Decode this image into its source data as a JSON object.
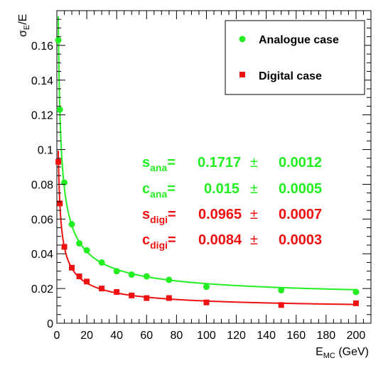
{
  "chart_data": {
    "type": "scatter",
    "xlabel": {
      "main": "E",
      "sub": "MC",
      "suffix": " (GeV)"
    },
    "ylabel": {
      "main": "σ",
      "sub": "E",
      "suffix": "/E"
    },
    "xlim": [
      0,
      210
    ],
    "ylim": [
      0,
      0.18
    ],
    "xticks": [
      0,
      20,
      40,
      60,
      80,
      100,
      120,
      140,
      160,
      180,
      200
    ],
    "yticks": [
      0,
      0.02,
      0.04,
      0.06,
      0.08,
      0.1,
      0.12,
      0.14,
      0.16
    ],
    "ytick_labels": [
      "0",
      "0.02",
      "0.04",
      "0.06",
      "0.08",
      "0.1",
      "0.12",
      "0.14",
      "0.16"
    ],
    "grid": false,
    "legend_position": "top-right",
    "series": [
      {
        "name": "Analogue case",
        "marker": "circle",
        "color": "#22ee22",
        "x": [
          1,
          2,
          5,
          10,
          15,
          20,
          30,
          40,
          50,
          60,
          75,
          100,
          150,
          200
        ],
        "y": [
          0.163,
          0.123,
          0.081,
          0.057,
          0.046,
          0.042,
          0.035,
          0.03,
          0.028,
          0.027,
          0.025,
          0.021,
          0.019,
          0.018
        ]
      },
      {
        "name": "Digital case",
        "marker": "square",
        "color": "#ee1111",
        "x": [
          1,
          2,
          5,
          10,
          15,
          20,
          30,
          40,
          50,
          60,
          75,
          100,
          150,
          200
        ],
        "y": [
          0.093,
          0.069,
          0.044,
          0.032,
          0.027,
          0.024,
          0.02,
          0.018,
          0.016,
          0.0145,
          0.0145,
          0.012,
          0.0105,
          0.0115
        ]
      }
    ],
    "fits": [
      {
        "label": "s",
        "sub": "ana",
        "value": "0.1717",
        "pm": "±",
        "error": "0.0012",
        "color": "#22ee22",
        "s": 0.1717,
        "c": 0.015
      },
      {
        "label": "c",
        "sub": "ana",
        "value": "0.015",
        "pm": "±",
        "error": "0.0005",
        "color": "#22ee22"
      },
      {
        "label": "s",
        "sub": "digi",
        "value": "0.0965",
        "pm": "±",
        "error": "0.0007",
        "color": "#ee1111",
        "s": 0.0965,
        "c": 0.0084
      },
      {
        "label": "c",
        "sub": "digi",
        "value": "0.0084",
        "pm": "±",
        "error": "0.0003",
        "color": "#ee1111"
      }
    ]
  }
}
